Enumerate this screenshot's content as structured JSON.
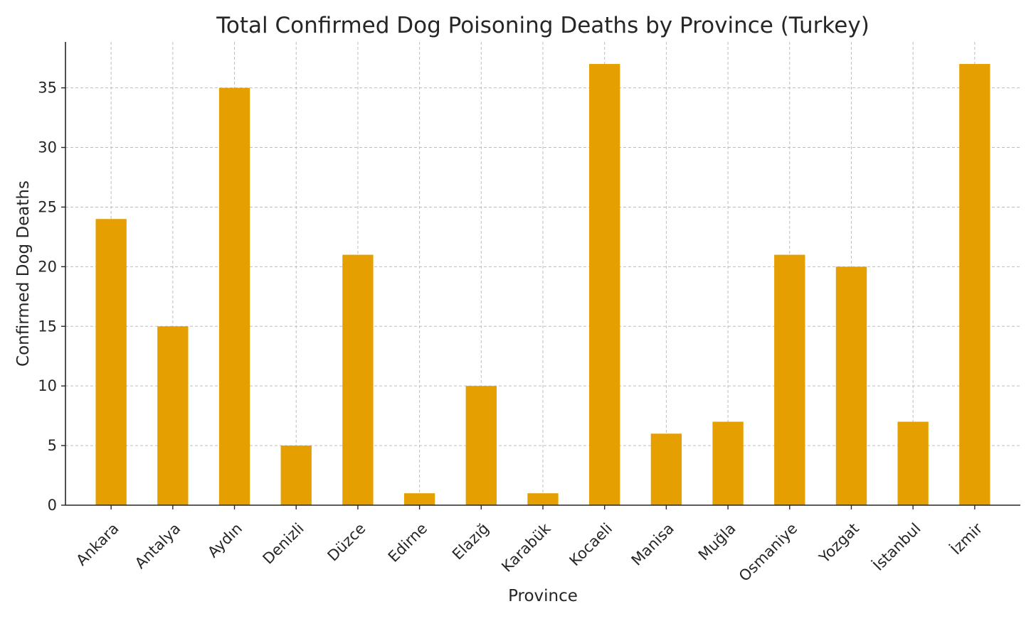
{
  "chart_data": {
    "type": "bar",
    "title": "Total Confirmed Dog Poisoning Deaths by Province (Turkey)",
    "xlabel": "Province",
    "ylabel": "Confirmed Dog Deaths",
    "categories": [
      "Ankara",
      "Antalya",
      "Aydın",
      "Denizli",
      "Düzce",
      "Edirne",
      "Elazığ",
      "Karabük",
      "Kocaeli",
      "Manisa",
      "Muğla",
      "Osmaniye",
      "Yozgat",
      "İstanbul",
      "İzmir"
    ],
    "values": [
      24,
      15,
      35,
      5,
      21,
      1,
      10,
      1,
      37,
      6,
      7,
      21,
      20,
      7,
      37
    ],
    "ylim": [
      0,
      38.85
    ],
    "yticks": [
      0,
      5,
      10,
      15,
      20,
      25,
      30,
      35
    ],
    "grid": true,
    "bar_color": "#E69F00",
    "legend": "none"
  }
}
